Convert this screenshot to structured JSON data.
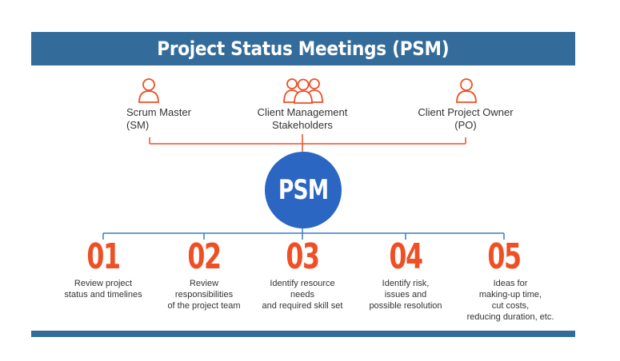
{
  "title": "Project Status Meetings (PSM)",
  "hub_label": "PSM",
  "roles": [
    {
      "label": "Scrum Master\n(SM)",
      "icon": "person-icon"
    },
    {
      "label": "Client Management\nStakeholders",
      "icon": "group-icon"
    },
    {
      "label": "Client Project Owner\n(PO)",
      "icon": "person-icon"
    }
  ],
  "steps": [
    {
      "number": "01",
      "text": "Review project\nstatus and timelines"
    },
    {
      "number": "02",
      "text": "Review\nresponsibilities\nof the project team"
    },
    {
      "number": "03",
      "text": "Identify resource\nneeds\nand required skill set"
    },
    {
      "number": "04",
      "text": "Identify risk,\nissues and\npossible resolution"
    },
    {
      "number": "05",
      "text": "Ideas for\nmaking-up time,\ncut costs,\nreducing duration, etc."
    }
  ],
  "colors": {
    "banner": "#336b9a",
    "hub": "#2a66c2",
    "accent_orange": "#f04e23",
    "connector_blue": "#3b7cc4"
  }
}
